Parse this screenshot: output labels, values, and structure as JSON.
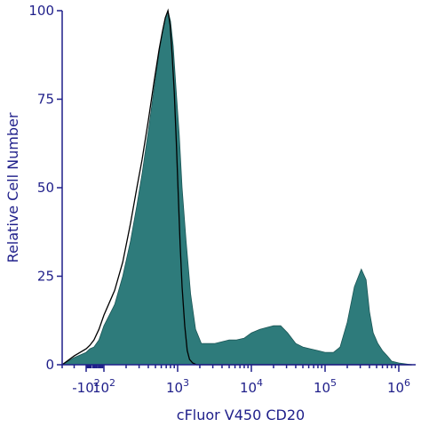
{
  "chart_data": {
    "type": "area",
    "title": "",
    "xlabel": "cFluor V450 CD20",
    "ylabel": "Relative Cell Number",
    "x_scale": "biexponential",
    "xlim": [
      -300,
      1500000
    ],
    "ylim": [
      0,
      100
    ],
    "grid": false,
    "legend": "none",
    "y_ticks": [
      {
        "value": 0,
        "label": "0"
      },
      {
        "value": 25,
        "label": "25"
      },
      {
        "value": 50,
        "label": "50"
      },
      {
        "value": 75,
        "label": "75"
      },
      {
        "value": 100,
        "label": "100"
      }
    ],
    "x_ticks": [
      {
        "value": -100,
        "base": "-10",
        "exp": "2"
      },
      {
        "value": 100,
        "base": "10",
        "exp": "2"
      },
      {
        "value": 1000,
        "base": "10",
        "exp": "3"
      },
      {
        "value": 10000,
        "base": "10",
        "exp": "4"
      },
      {
        "value": 100000,
        "base": "10",
        "exp": "5"
      },
      {
        "value": 1000000,
        "base": "10",
        "exp": "6"
      }
    ],
    "series": [
      {
        "fill": "#2e7b7b",
        "style": "filled",
        "points": [
          [
            -300,
            0
          ],
          [
            -200,
            2
          ],
          [
            -100,
            3.5
          ],
          [
            -30,
            4.5
          ],
          [
            20,
            5
          ],
          [
            60,
            7
          ],
          [
            100,
            11
          ],
          [
            140,
            17
          ],
          [
            180,
            25
          ],
          [
            230,
            35
          ],
          [
            280,
            45
          ],
          [
            330,
            54
          ],
          [
            400,
            66
          ],
          [
            480,
            78
          ],
          [
            560,
            88
          ],
          [
            620,
            94
          ],
          [
            680,
            98
          ],
          [
            740,
            100
          ],
          [
            800,
            97
          ],
          [
            870,
            90
          ],
          [
            950,
            78
          ],
          [
            1050,
            65
          ],
          [
            1150,
            50
          ],
          [
            1300,
            35
          ],
          [
            1500,
            20
          ],
          [
            1750,
            10
          ],
          [
            2100,
            6
          ],
          [
            2600,
            6
          ],
          [
            3200,
            6
          ],
          [
            4000,
            6.5
          ],
          [
            5000,
            7
          ],
          [
            6300,
            7
          ],
          [
            8000,
            7.5
          ],
          [
            10000,
            9
          ],
          [
            13000,
            10
          ],
          [
            16000,
            10.5
          ],
          [
            20000,
            11
          ],
          [
            25000,
            11
          ],
          [
            31000,
            9
          ],
          [
            40000,
            6
          ],
          [
            50000,
            5
          ],
          [
            63000,
            4.5
          ],
          [
            80000,
            4
          ],
          [
            100000,
            3.5
          ],
          [
            130000,
            3.5
          ],
          [
            160000,
            5
          ],
          [
            200000,
            12
          ],
          [
            250000,
            22
          ],
          [
            310000,
            27
          ],
          [
            360000,
            24
          ],
          [
            400000,
            15
          ],
          [
            450000,
            9
          ],
          [
            520000,
            6
          ],
          [
            600000,
            4
          ],
          [
            700000,
            2.5
          ],
          [
            800000,
            1
          ],
          [
            1000000,
            0.5
          ],
          [
            1500000,
            0
          ]
        ]
      },
      {
        "stroke": "#000000",
        "style": "outline",
        "points": [
          [
            -300,
            0
          ],
          [
            -200,
            2.5
          ],
          [
            -100,
            4.5
          ],
          [
            -30,
            5.5
          ],
          [
            20,
            7
          ],
          [
            60,
            10
          ],
          [
            100,
            14
          ],
          [
            140,
            21
          ],
          [
            180,
            29
          ],
          [
            230,
            40
          ],
          [
            280,
            50
          ],
          [
            330,
            58
          ],
          [
            400,
            69
          ],
          [
            480,
            80
          ],
          [
            560,
            89
          ],
          [
            620,
            94
          ],
          [
            680,
            98
          ],
          [
            740,
            100
          ],
          [
            790,
            96
          ],
          [
            840,
            88
          ],
          [
            900,
            77
          ],
          [
            960,
            63
          ],
          [
            1020,
            48
          ],
          [
            1080,
            34
          ],
          [
            1150,
            22
          ],
          [
            1250,
            11
          ],
          [
            1350,
            4
          ],
          [
            1450,
            1.5
          ],
          [
            1600,
            0.5
          ],
          [
            1800,
            0
          ],
          [
            1500000,
            0
          ]
        ]
      }
    ]
  }
}
